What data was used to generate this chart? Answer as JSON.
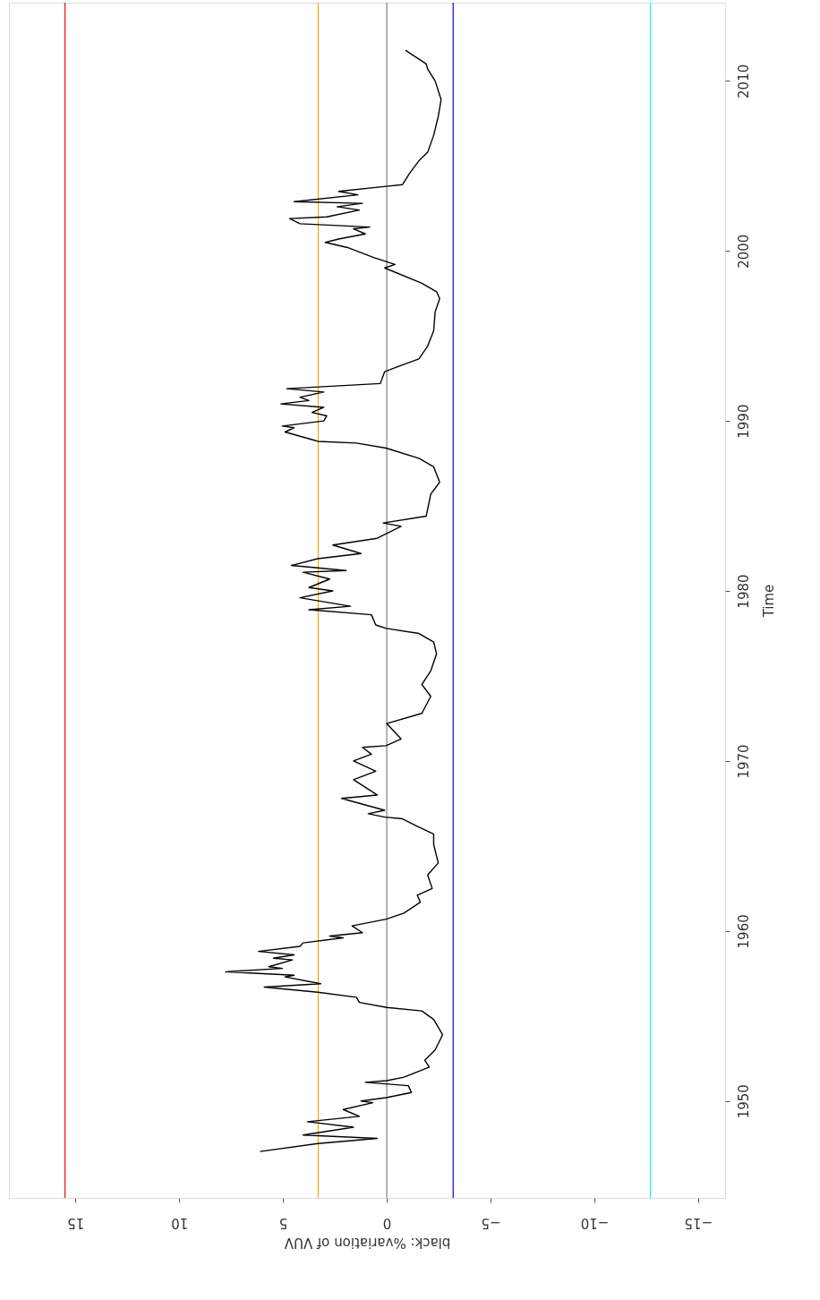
{
  "chart_data": {
    "type": "line",
    "xlabel": "black: %variation of VUV",
    "ylabel": "Time",
    "xlim": [
      18.2,
      -16.3
    ],
    "ylim": [
      1944.3,
      2014.6
    ],
    "xticks": [
      15,
      10,
      5,
      0,
      {
        "value": -5,
        "label": "−5"
      },
      {
        "value": -10,
        "label": "−10"
      },
      {
        "value": -15,
        "label": "−15"
      }
    ],
    "yticks": [
      1950,
      1960,
      1970,
      1980,
      1990,
      2000,
      2010
    ],
    "grid": false,
    "ref_lines": [
      {
        "axis": "x",
        "value": 15.5,
        "color": "#ff0000"
      },
      {
        "axis": "x",
        "value": 3.3,
        "color": "#ffa500"
      },
      {
        "axis": "x",
        "value": 0,
        "color": "#808080"
      },
      {
        "axis": "x",
        "value": -3.2,
        "color": "#0000ff"
      },
      {
        "axis": "x",
        "value": -12.7,
        "color": "#00ffff"
      }
    ],
    "series": [
      {
        "color": "#000000",
        "x": [
          6.1,
          3.32,
          0.46,
          4.03,
          1.6,
          3.82,
          1.32,
          2.1,
          0.67,
          1.24,
          0.03,
          -1.19,
          -1.04,
          1.03,
          0,
          -0.83,
          -2.05,
          -1.83,
          -2.33,
          -2.69,
          -2.26,
          -1.69,
          0,
          1.32,
          1.46,
          3.32,
          5.9,
          3.18,
          4.9,
          4.46,
          7.76,
          5.03,
          5.68,
          4.54,
          5.46,
          4.46,
          6.18,
          4.18,
          4.03,
          2.1,
          2.75,
          1.17,
          1.67,
          0.03,
          -0.83,
          -1.62,
          -1.47,
          -2.19,
          -1.97,
          -2.48,
          -2.26,
          -2.26,
          -1.4,
          -0.76,
          0.1,
          0.89,
          0.1,
          2.18,
          0.46,
          1.6,
          0.53,
          1.6,
          0.74,
          1.17,
          0.03,
          -0.69,
          0,
          -1.69,
          -2.12,
          -1.69,
          -2.12,
          -2.4,
          -2.26,
          -1.55,
          0.03,
          0.53,
          0.74,
          3.75,
          1.75,
          4.18,
          2.6,
          3.75,
          2.75,
          4.03,
          1.96,
          4.6,
          3.32,
          1.24,
          2.6,
          0.46,
          -0.69,
          0.17,
          -1.9,
          -1.97,
          -2.12,
          -2.55,
          -2.26,
          -1.55,
          0.03,
          1.46,
          3.32,
          3.6,
          4.9,
          4.46,
          5.03,
          3.03,
          2.89,
          3.6,
          3.03,
          5.1,
          3.75,
          4.18,
          3.03,
          4.82,
          0.31,
          0.1,
          -0.55,
          -1.55,
          -1.97,
          -2.26,
          -2.33,
          -2.55,
          -2.4,
          -1.69,
          0.1,
          -0.4,
          0.6,
          1.89,
          2.96,
          2.32,
          1.03,
          1.6,
          0.82,
          4.18,
          4.68,
          2.89,
          1.32,
          2.39,
          1.17,
          4.46,
          1.39,
          2.32,
          0.03,
          -0.76,
          -1.12,
          -1.55,
          -1.97,
          -2.26,
          -2.48,
          -2.62,
          -2.33,
          -1.97,
          -1.9,
          -0.9
        ],
        "values": [
          1947.03,
          1947.5,
          1947.8,
          1948.0,
          1948.46,
          1948.78,
          1949.1,
          1949.5,
          1949.9,
          1950.0,
          1950.2,
          1950.5,
          1950.9,
          1951.1,
          1951.2,
          1951.4,
          1952.0,
          1952.4,
          1953.0,
          1953.9,
          1954.8,
          1955.3,
          1955.5,
          1955.8,
          1956.1,
          1956.4,
          1956.7,
          1956.9,
          1957.3,
          1957.4,
          1957.6,
          1957.8,
          1957.9,
          1958.3,
          1958.4,
          1958.6,
          1958.8,
          1959.1,
          1959.3,
          1959.6,
          1959.7,
          1959.9,
          1960.3,
          1960.7,
          1961.05,
          1961.7,
          1962.1,
          1962.5,
          1963.3,
          1964.0,
          1965.1,
          1965.7,
          1966.2,
          1966.6,
          1966.7,
          1966.9,
          1967.1,
          1967.8,
          1968.0,
          1968.9,
          1969.4,
          1970.0,
          1970.4,
          1970.8,
          1970.9,
          1971.3,
          1972.2,
          1972.8,
          1973.8,
          1974.5,
          1975.3,
          1976.3,
          1977.0,
          1977.5,
          1977.8,
          1978.0,
          1978.6,
          1978.9,
          1979.1,
          1979.6,
          1980.0,
          1980.2,
          1980.7,
          1981.1,
          1981.2,
          1981.5,
          1981.9,
          1982.2,
          1982.7,
          1983.1,
          1983.8,
          1984.0,
          1984.4,
          1984.8,
          1985.7,
          1986.4,
          1987.3,
          1987.8,
          1988.4,
          1988.7,
          1988.8,
          1988.9,
          1989.35,
          1989.6,
          1989.7,
          1990.0,
          1990.3,
          1990.5,
          1990.8,
          1991.0,
          1991.2,
          1991.4,
          1991.7,
          1991.9,
          1992.2,
          1992.9,
          1993.2,
          1993.65,
          1994.4,
          1995.3,
          1996.4,
          1997.2,
          1997.6,
          1998.1,
          1999.0,
          1999.2,
          1999.6,
          2000.2,
          2000.5,
          2000.7,
          2001.0,
          2001.3,
          2001.4,
          2001.6,
          2001.9,
          2002.0,
          2002.4,
          2002.6,
          2002.8,
          2002.9,
          2003.3,
          2003.5,
          2003.8,
          2003.9,
          2004.6,
          2005.3,
          2005.8,
          2006.8,
          2007.9,
          2008.9,
          2010.0,
          2010.7,
          2011.0,
          2011.8
        ]
      }
    ]
  }
}
